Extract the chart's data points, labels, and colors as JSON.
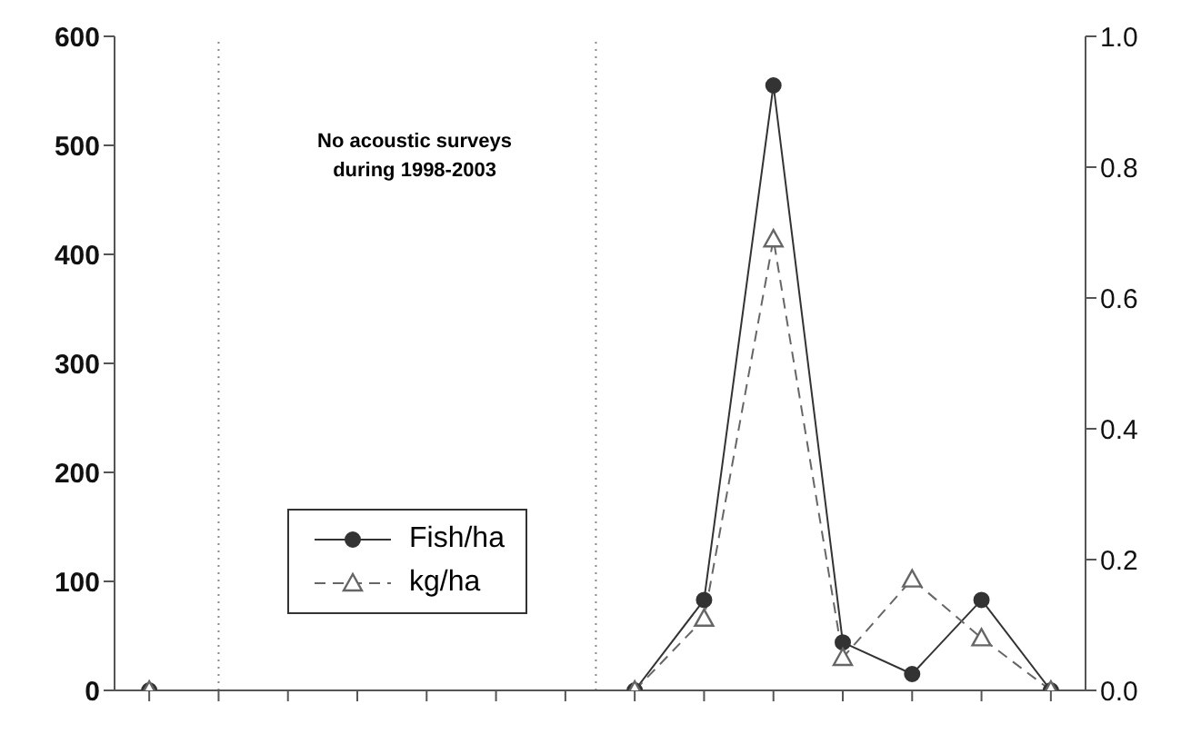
{
  "chart_data": {
    "type": "line",
    "categories": [
      null,
      null,
      null,
      null,
      null,
      null,
      null,
      null,
      null,
      null,
      null,
      null,
      null,
      null
    ],
    "ylim": [
      0,
      600
    ],
    "yticks": [
      0,
      100,
      200,
      300,
      400,
      500,
      600
    ],
    "y2lim": [
      0,
      1
    ],
    "y2ticks": [
      {
        "value": 0,
        "label": "0.0"
      },
      {
        "value": 0.2,
        "label": "0.2"
      },
      {
        "value": 0.4,
        "label": "0.4"
      },
      {
        "value": 0.6,
        "label": "0.6"
      },
      {
        "value": 0.8,
        "label": "0.8"
      },
      {
        "value": 1,
        "label": "1.0"
      }
    ],
    "series": [
      {
        "name": "Fish/ha",
        "color": "#333333",
        "marker": "circle",
        "line_style": "solid",
        "values": [
          0,
          null,
          null,
          null,
          null,
          null,
          null,
          0,
          83,
          555,
          44,
          15,
          83,
          0
        ]
      },
      {
        "name": "kg/ha",
        "color": "#666666",
        "marker": "triangle",
        "line_style": "dashed",
        "axis": "y2",
        "values": [
          0,
          null,
          null,
          null,
          null,
          null,
          null,
          0,
          0.11,
          0.69,
          0.05,
          0.17,
          0.08,
          0
        ]
      }
    ],
    "annotations": [
      "No acoustic surveys during 1998-2003"
    ],
    "legend": "bottom left",
    "grid": false
  }
}
